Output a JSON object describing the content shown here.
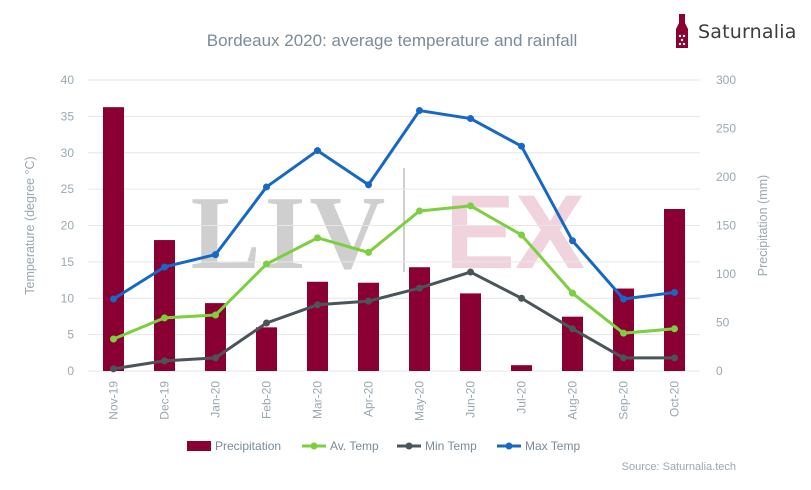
{
  "brand": {
    "name": "Saturnalia",
    "icon": "wine-bottle-icon"
  },
  "watermark": {
    "left": "LIV",
    "right": "EX"
  },
  "source": "Source: Saturnalia.tech",
  "colors": {
    "precipitation": "#8a0033",
    "av_temp": "#7dcf3f",
    "min_temp": "#4a5459",
    "max_temp": "#1668c4",
    "title": "#7a8b99",
    "axis_text": "#9aa8b0",
    "grid": "#e6e6e6"
  },
  "chart_data": {
    "type": "bar",
    "title": "Bordeaux 2020: average temperature and rainfall",
    "categories": [
      "Nov-19",
      "Dec-19",
      "Jan-20",
      "Feb-20",
      "Mar-20",
      "Apr-20",
      "May-20",
      "Jun-20",
      "Jul-20",
      "Aug-20",
      "Sep-20",
      "Oct-20"
    ],
    "y_left": {
      "label": "Temperature (degree °C)",
      "min": 0,
      "max": 40,
      "ticks": [
        0,
        5,
        10,
        15,
        20,
        25,
        30,
        35,
        40
      ]
    },
    "y_right": {
      "label": "Precipitation (mm)",
      "min": 0,
      "max": 300,
      "ticks": [
        0,
        50,
        100,
        150,
        200,
        250,
        300
      ]
    },
    "grid": true,
    "legend_position": "bottom",
    "series": [
      {
        "name": "Precipitation",
        "type": "bar",
        "axis": "right",
        "values": [
          272,
          135,
          70,
          45,
          92,
          91,
          107,
          80,
          6,
          56,
          85,
          167
        ]
      },
      {
        "name": "Av. Temp",
        "type": "line",
        "axis": "left",
        "values": [
          4.4,
          7.3,
          7.7,
          14.7,
          18.3,
          16.3,
          22.0,
          22.7,
          18.7,
          10.7,
          5.2,
          5.8
        ]
      },
      {
        "name": "Min Temp",
        "type": "line",
        "axis": "left",
        "values": [
          0.3,
          1.4,
          1.8,
          6.6,
          9.1,
          9.6,
          11.4,
          13.6,
          10.0,
          5.8,
          1.8,
          1.8
        ]
      },
      {
        "name": "Max Temp",
        "type": "line",
        "axis": "left",
        "values": [
          9.9,
          14.3,
          16.0,
          25.3,
          30.3,
          25.6,
          35.8,
          34.7,
          30.9,
          17.9,
          9.9,
          10.8
        ]
      }
    ]
  }
}
